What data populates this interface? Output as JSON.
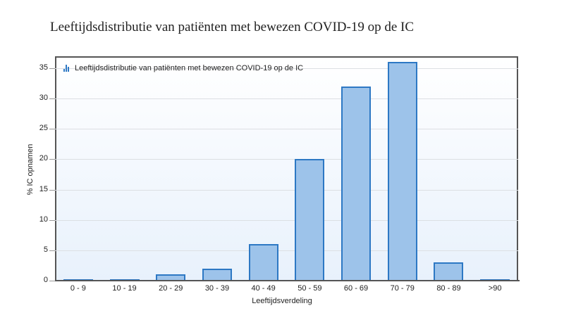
{
  "page": {
    "title": "Leeftijdsdistributie van patiënten met bewezen COVID-19 op de IC"
  },
  "legend": {
    "label": "Leeftijdsdistributie van patiënten met bewezen COVID-19 op de IC",
    "icon": "bar-chart-icon"
  },
  "axes": {
    "ylabel": "% IC opnamen",
    "xlabel": "Leeftijdsverdeling",
    "yticks": [
      "0",
      "5",
      "10",
      "15",
      "20",
      "25",
      "30",
      "35"
    ]
  },
  "colors": {
    "bar_fill": "#9dc3ea",
    "bar_stroke": "#2d78c4"
  },
  "chart_data": {
    "type": "bar",
    "title": "Leeftijdsdistributie van patiënten met bewezen COVID-19 op de IC",
    "categories": [
      "0 - 9",
      "10 - 19",
      "20 - 29",
      "30 - 39",
      "40 - 49",
      "50 - 59",
      "60 - 69",
      "70 - 79",
      "80 - 89",
      ">90"
    ],
    "series": [
      {
        "name": "Leeftijdsdistributie van patiënten met bewezen COVID-19 op de IC",
        "values": [
          0.1,
          0.1,
          1,
          2,
          6,
          20,
          32,
          36,
          3,
          0.1
        ]
      }
    ],
    "xlabel": "Leeftijdsverdeling",
    "ylabel": "% IC opnamen",
    "ylim": [
      0,
      36.5
    ],
    "yticks": [
      0,
      5,
      10,
      15,
      20,
      25,
      30,
      35
    ],
    "grid": true,
    "legend_position": "top-left inside"
  }
}
